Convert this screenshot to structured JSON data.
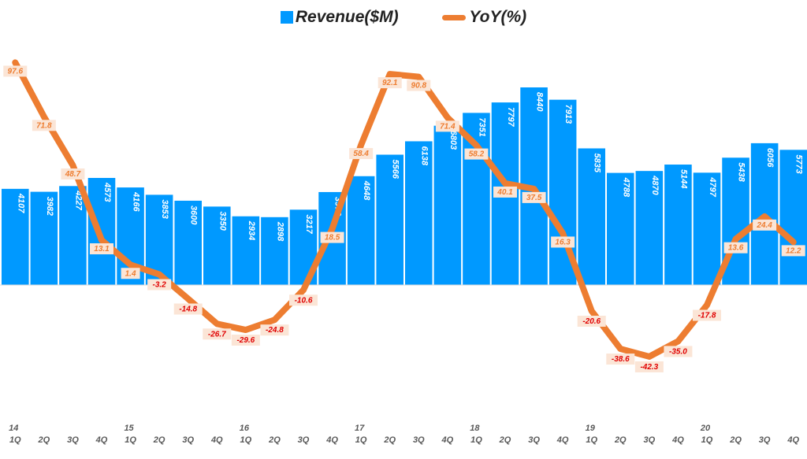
{
  "chart_data": {
    "type": "bar+line",
    "legend": [
      {
        "name": "Revenue($M)",
        "color": "#0099ff"
      },
      {
        "name": "YoY(%)",
        "color": "#ed7d31"
      }
    ],
    "legend_position": "top",
    "quarters": [
      "1Q",
      "2Q",
      "3Q",
      "4Q",
      "1Q",
      "2Q",
      "3Q",
      "4Q",
      "1Q",
      "2Q",
      "3Q",
      "4Q",
      "1Q",
      "2Q",
      "3Q",
      "4Q",
      "1Q",
      "2Q",
      "3Q",
      "4Q",
      "1Q",
      "2Q",
      "3Q",
      "4Q",
      "1Q",
      "2Q",
      "3Q",
      "4Q"
    ],
    "years": [
      "14",
      "15",
      "16",
      "17",
      "18",
      "19",
      "20"
    ],
    "series": [
      {
        "name": "Revenue($M)",
        "type": "bar",
        "values": [
          4107,
          3982,
          4227,
          4573,
          4166,
          3853,
          3600,
          3350,
          2934,
          2898,
          3217,
          3970,
          4648,
          5566,
          6138,
          6803,
          7351,
          7797,
          8440,
          7913,
          5835,
          4788,
          4870,
          5144,
          4797,
          5438,
          6056,
          5773
        ]
      },
      {
        "name": "YoY(%)",
        "type": "line",
        "values": [
          97.6,
          71.8,
          48.7,
          13.1,
          1.4,
          -3.2,
          -14.8,
          -26.7,
          -29.6,
          -24.8,
          -10.6,
          18.5,
          58.4,
          92.1,
          90.8,
          71.4,
          58.2,
          40.1,
          37.5,
          16.3,
          -20.6,
          -38.6,
          -42.3,
          -35.0,
          -17.8,
          13.6,
          24.4,
          12.2
        ]
      }
    ]
  }
}
